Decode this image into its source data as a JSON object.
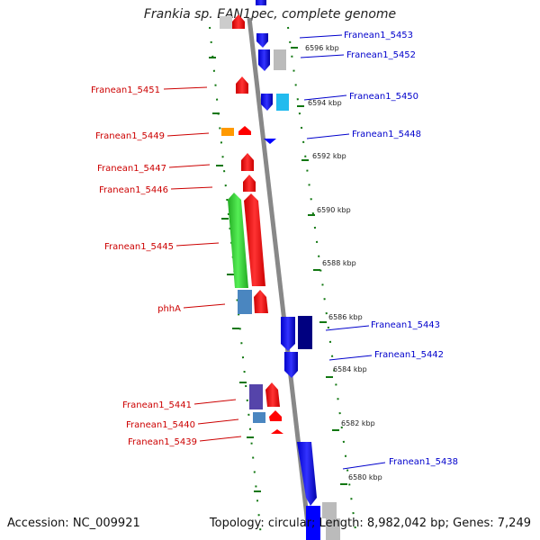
{
  "title": "Frankia sp. EAN1pec, complete genome",
  "footer": {
    "accession": "Accession: NC_009921",
    "topology": "Topology: circular; Length: 8,982,042 bp; Genes: 7,249"
  },
  "kbp_ticks": [
    "6596 kbp",
    "6594 kbp",
    "6592 kbp",
    "6590 kbp",
    "6588 kbp",
    "6586 kbp",
    "6584 kbp",
    "6582 kbp",
    "6580 kbp"
  ],
  "left_labels": [
    "Franean1_5451",
    "Franean1_5449",
    "Franean1_5447",
    "Franean1_5446",
    "Franean1_5445",
    "phhA",
    "Franean1_5441",
    "Franean1_5440",
    "Franean1_5439"
  ],
  "right_labels": [
    "Franean1_5453",
    "Franean1_5452",
    "Franean1_5450",
    "Franean1_5448",
    "Franean1_5443",
    "Franean1_5442",
    "Franean1_5438"
  ],
  "colors": {
    "forward_label": "#cc0000",
    "reverse_label": "#0000cc",
    "red": "#ff0000",
    "blue": "#0000ff",
    "green": "#33cc33",
    "steel": "#4a86c0",
    "navy": "#000080",
    "grey": "#bbbbbb",
    "cyan": "#22bbee",
    "orange": "#ff9900",
    "slate": "#5544aa",
    "tick_green": "#117711",
    "backbone": "#888888"
  }
}
